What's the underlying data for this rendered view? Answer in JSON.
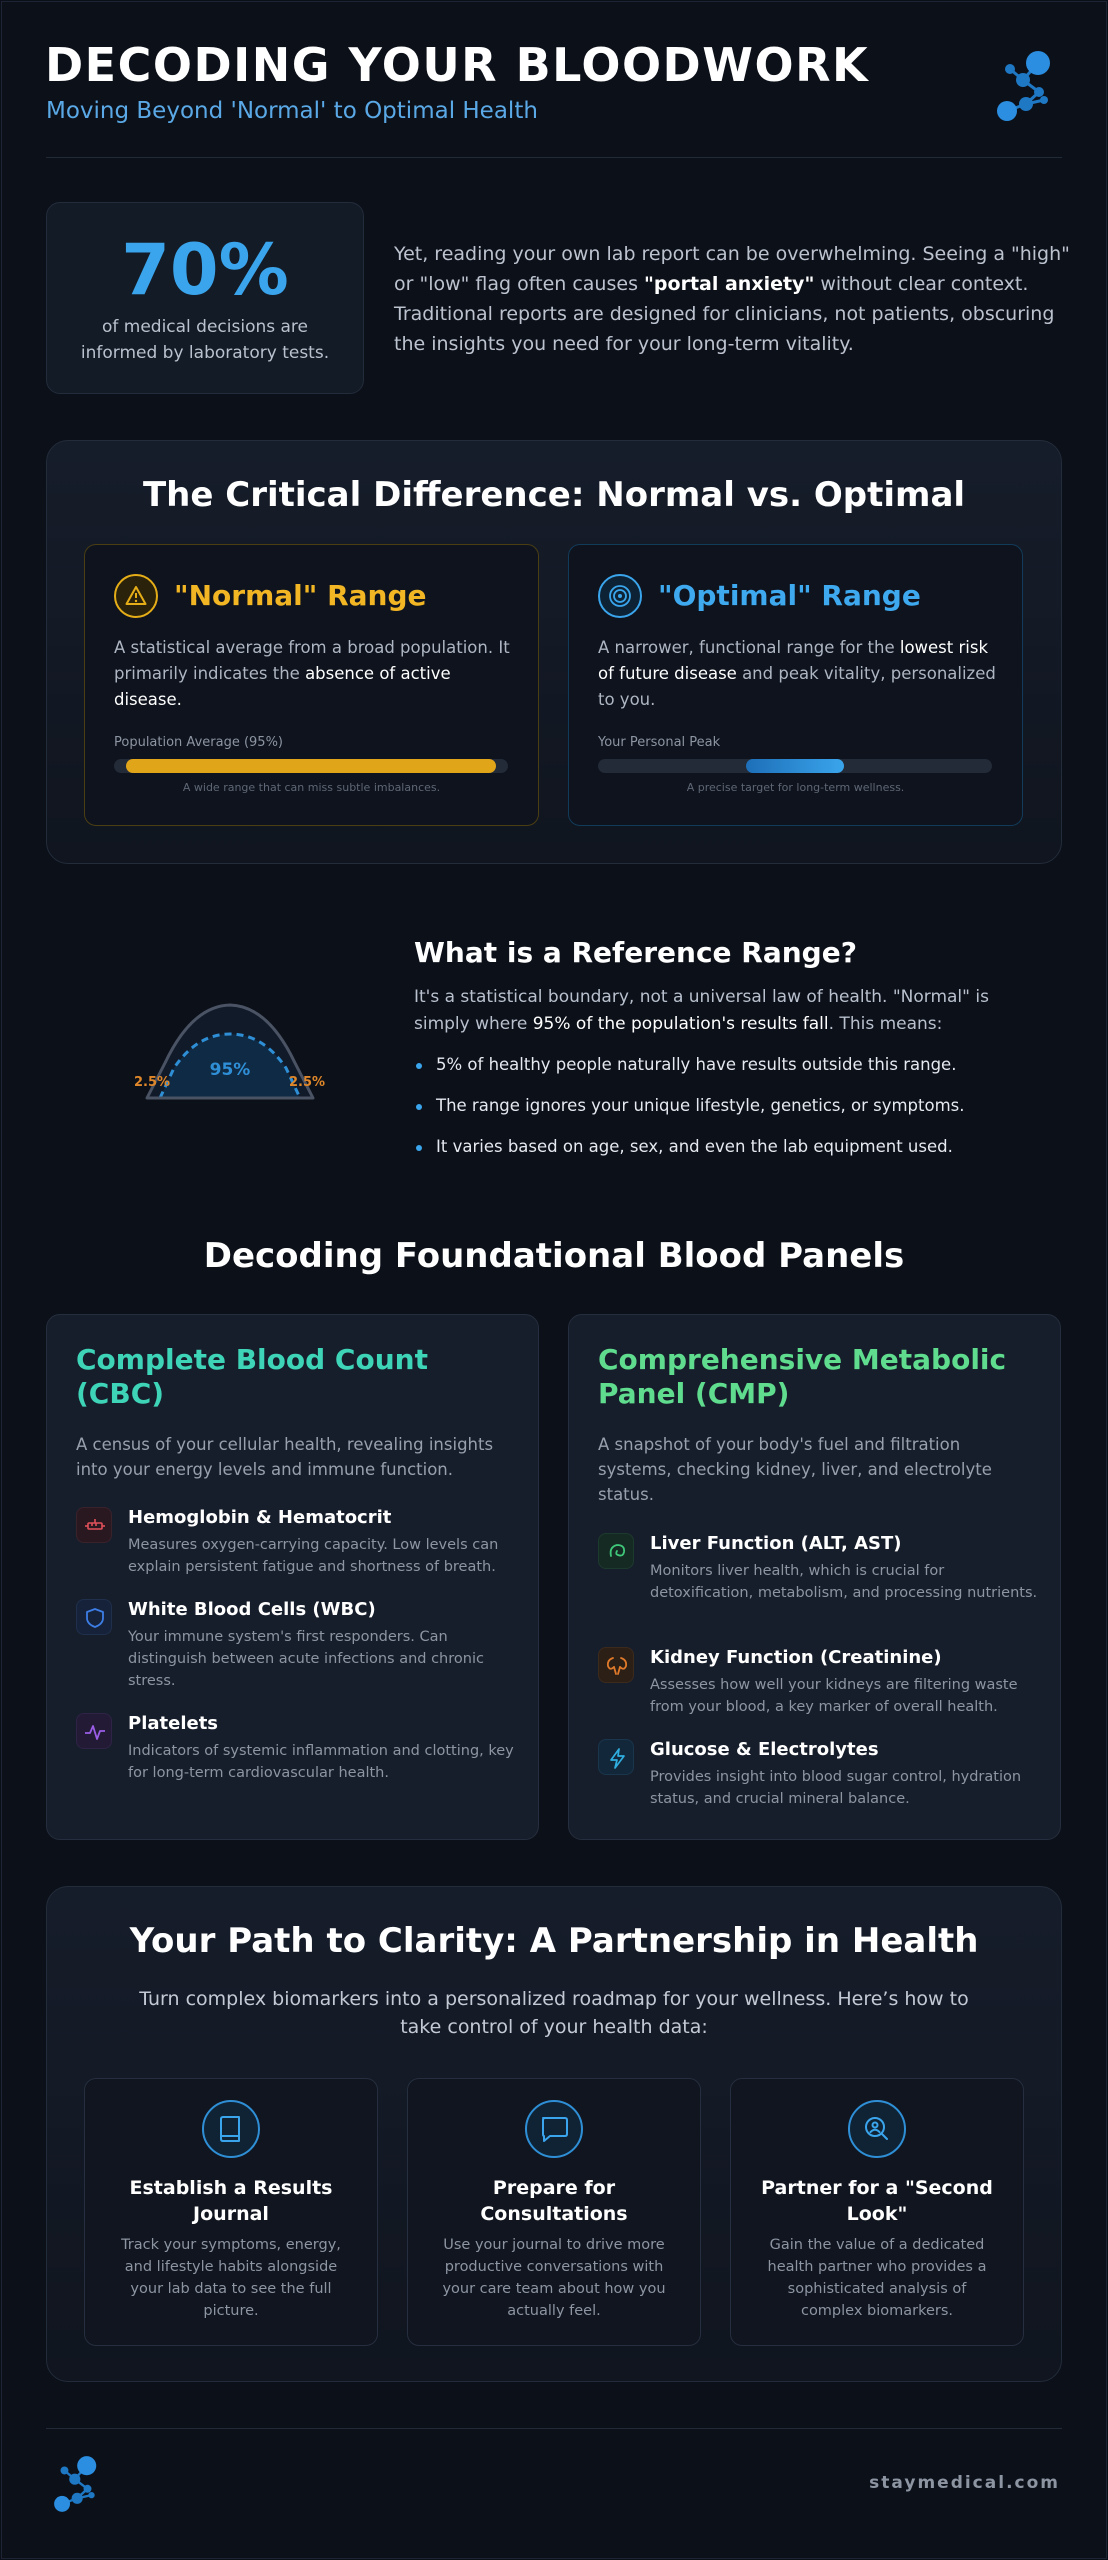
{
  "header": {
    "title": "DECODING YOUR BLOODWORK",
    "subtitle": "Moving Beyond 'Normal' to Optimal Health",
    "logo_icon": "molecule-logo-icon"
  },
  "stat": {
    "value": "70%",
    "caption": "of medical decisions are informed by laboratory tests."
  },
  "intro": {
    "part1": "Yet, reading your own lab report can be overwhelming. Seeing a \"high\" or \"low\" flag often causes ",
    "bold": "\"portal anxiety\"",
    "part2": " without clear context. Traditional reports are designed for clinicians, not patients, obscuring the insights you need for your long-term vitality."
  },
  "difference": {
    "title": "The Critical Difference: Normal vs. Optimal",
    "normal": {
      "icon": "warning-triangle-icon",
      "title": "\"Normal\" Range",
      "desc1": "A statistical average from a broad population. It primarily indicates the ",
      "desc_bold": "absence of active disease.",
      "desc2": "",
      "bar_label": "Population Average (95%)",
      "bar_start": 0.03,
      "bar_end": 0.97,
      "note": "A wide range that can miss subtle imbalances.",
      "color": "#f2b624"
    },
    "optimal": {
      "icon": "target-icon",
      "title": "\"Optimal\" Range",
      "desc1": "A narrower, functional range for the ",
      "desc_bold": "lowest risk of future disease",
      "desc2": " and peak vitality, personalized to you.",
      "bar_label": "Your Personal Peak",
      "bar_start": 0.375,
      "bar_end": 0.625,
      "note": "A precise target for long-term wellness.",
      "color": "#3ea9ef"
    }
  },
  "reference": {
    "title": "What is a Reference Range?",
    "desc1": "It's a statistical boundary, not a universal law of health. \"Normal\" is simply where ",
    "desc_bold": "95% of the population's results fall",
    "desc2": ". This means:",
    "bullets": [
      "5% of healthy people naturally have results outside this range.",
      "The range ignores your unique lifestyle, genetics, or symptoms.",
      "It varies based on age, sex, and even the lab equipment used."
    ],
    "curve": {
      "center_label": "95%",
      "left_label": "2.5%",
      "right_label": "2.5%"
    }
  },
  "panels": {
    "title": "Decoding Foundational Blood Panels",
    "cbc": {
      "title": "Complete Blood Count (CBC)",
      "desc": "A census of your cellular health, revealing insights into your energy levels and immune function.",
      "items": [
        {
          "icon": "test-tube-icon",
          "name": "Hemoglobin & Hematocrit",
          "desc": "Measures oxygen-carrying capacity. Low levels can explain persistent fatigue and shortness of breath."
        },
        {
          "icon": "shield-icon",
          "name": "White Blood Cells (WBC)",
          "desc": "Your immune system's first responders. Can distinguish between acute infections and chronic stress."
        },
        {
          "icon": "pulse-icon",
          "name": "Platelets",
          "desc": "Indicators of systemic inflammation and clotting, key for long-term cardiovascular health."
        }
      ]
    },
    "cmp": {
      "title": "Comprehensive Metabolic Panel (CMP)",
      "desc": "A snapshot of your body's fuel and filtration systems, checking kidney, liver, and electrolyte status.",
      "items": [
        {
          "icon": "liver-icon",
          "name": "Liver Function (ALT, AST)",
          "desc": "Monitors liver health, which is crucial for detoxification, metabolism, and processing nutrients."
        },
        {
          "icon": "kidney-icon",
          "name": "Kidney Function (Creatinine)",
          "desc": "Assesses how well your kidneys are filtering waste from your blood, a key marker of overall health."
        },
        {
          "icon": "lightning-icon",
          "name": "Glucose & Electrolytes",
          "desc": "Provides insight into blood sugar control, hydration status, and crucial mineral balance."
        }
      ]
    }
  },
  "path": {
    "title": "Your Path to Clarity: A Partnership in Health",
    "intro": "Turn complex biomarkers into a personalized roadmap for your wellness. Here’s how to take control of your health data:",
    "steps": [
      {
        "icon": "journal-icon",
        "title": "Establish a Results Journal",
        "desc": "Track your symptoms, energy, and lifestyle habits alongside your lab data to see the full picture."
      },
      {
        "icon": "chat-icon",
        "title": "Prepare for Consultations",
        "desc": "Use your journal to drive more productive conversations with your care team about how you actually feel."
      },
      {
        "icon": "search-person-icon",
        "title": "Partner for a \"Second Look\"",
        "desc": "Gain the value of a dedicated health partner who provides a sophisticated analysis of complex biomarkers."
      }
    ]
  },
  "footer": {
    "brand": "staymedical.com",
    "logo_icon": "molecule-logo-icon"
  }
}
